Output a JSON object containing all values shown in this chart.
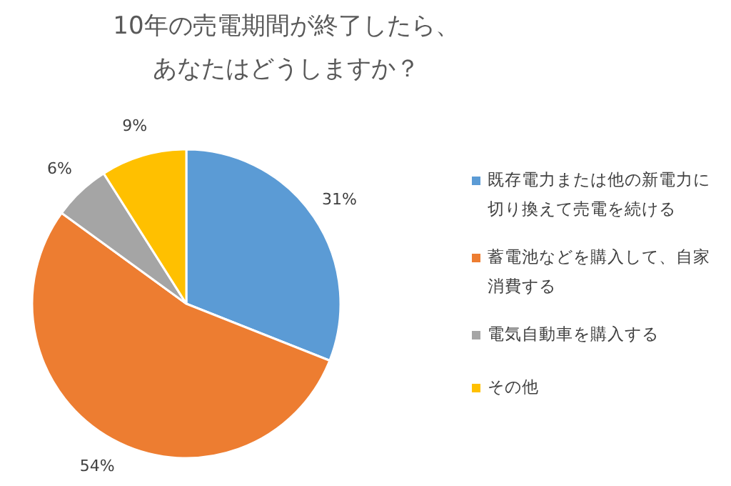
{
  "chart_data": {
    "type": "pie",
    "title": "10年の売電期間が終了したら、あなたはどうしますか？",
    "categories": [
      "既存電力または他の新電力に切り換えて売電を続ける",
      "蓄電池などを購入して、自家消費する",
      "電気自動車を購入する",
      "その他"
    ],
    "values": [
      31,
      54,
      6,
      9
    ],
    "colors": [
      "#5b9bd5",
      "#ed7d31",
      "#a5a5a5",
      "#ffc000"
    ],
    "value_labels": [
      "31%",
      "54%",
      "6%",
      "9%"
    ],
    "legend": "right"
  }
}
